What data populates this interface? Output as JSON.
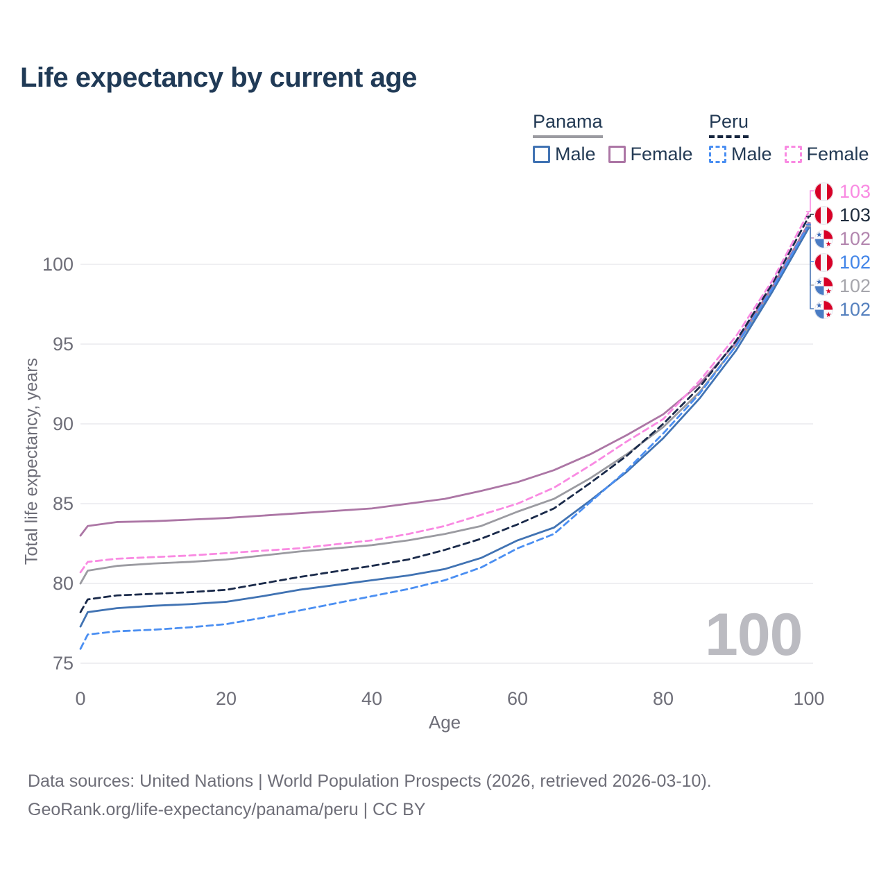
{
  "title": "Life expectancy by current age",
  "legend": {
    "groups": [
      {
        "label": "Panama",
        "line_style": "solid",
        "items": [
          {
            "label": "Male"
          },
          {
            "label": "Female"
          }
        ]
      },
      {
        "label": "Peru",
        "line_style": "dashed",
        "items": [
          {
            "label": "Male"
          },
          {
            "label": "Female"
          }
        ]
      }
    ]
  },
  "colors": {
    "panama_male": "#4173B3",
    "panama_female": "#AC76A5",
    "panama_total": "#9B9BA1",
    "peru_male": "#4B8FF2",
    "peru_female": "#F98AE2",
    "peru_total": "#1A2A4A",
    "panama_underline": "#9B9BA1",
    "peru_underline": "#16263F",
    "title_text": "#203A56",
    "axis_text": "#6E6E78",
    "gridline": "#EAEAEE",
    "watermark_gray": "#BBBBC1",
    "flag_red": "#D80027",
    "flag_blue": "#4A7CC4"
  },
  "chart_data": {
    "type": "line",
    "title": "Life expectancy by current age",
    "xlabel": "Age",
    "ylabel": "Total life expectancy, years",
    "xlim": [
      0,
      100
    ],
    "ylim": [
      75,
      103.5
    ],
    "x_ticks": [
      0,
      20,
      40,
      60,
      80,
      100
    ],
    "y_ticks": [
      75,
      80,
      85,
      90,
      95,
      100
    ],
    "grid": true,
    "legend_position": "top-right",
    "x": [
      0,
      1,
      5,
      10,
      15,
      20,
      25,
      30,
      35,
      40,
      45,
      50,
      55,
      60,
      65,
      70,
      75,
      80,
      85,
      90,
      95,
      100
    ],
    "series": [
      {
        "id": "panama_total",
        "name": "Panama (both sexes)",
        "country": "Panama",
        "dash": "solid",
        "color": "#9B9BA1",
        "values": [
          80.0,
          80.8,
          81.1,
          81.25,
          81.35,
          81.5,
          81.75,
          82.0,
          82.2,
          82.4,
          82.7,
          83.1,
          83.6,
          84.5,
          85.3,
          86.6,
          88.1,
          89.8,
          92.0,
          94.9,
          98.4,
          102.4
        ]
      },
      {
        "id": "panama_female",
        "name": "Panama Female",
        "country": "Panama",
        "dash": "solid",
        "color": "#AC76A5",
        "values": [
          83.0,
          83.6,
          83.85,
          83.9,
          84.0,
          84.1,
          84.25,
          84.4,
          84.55,
          84.7,
          85.0,
          85.3,
          85.8,
          86.35,
          87.1,
          88.1,
          89.3,
          90.6,
          92.5,
          95.1,
          98.6,
          102.6
        ]
      },
      {
        "id": "panama_male",
        "name": "Panama Male",
        "country": "Panama",
        "dash": "solid",
        "color": "#4173B3",
        "values": [
          77.3,
          78.2,
          78.45,
          78.6,
          78.7,
          78.85,
          79.2,
          79.6,
          79.9,
          80.2,
          80.5,
          80.9,
          81.6,
          82.7,
          83.5,
          85.2,
          87.0,
          89.1,
          91.6,
          94.6,
          98.3,
          102.3
        ]
      },
      {
        "id": "peru_total",
        "name": "Peru (both sexes)",
        "country": "Peru",
        "dash": "dashed",
        "color": "#1A2A4A",
        "values": [
          78.2,
          79.0,
          79.25,
          79.35,
          79.45,
          79.6,
          80.0,
          80.4,
          80.75,
          81.1,
          81.5,
          82.1,
          82.8,
          83.7,
          84.7,
          86.3,
          88.0,
          90.0,
          92.3,
          95.2,
          98.8,
          103.0
        ]
      },
      {
        "id": "peru_male",
        "name": "Peru Male",
        "country": "Peru",
        "dash": "dashed",
        "color": "#4B8FF2",
        "values": [
          75.9,
          76.8,
          77.0,
          77.1,
          77.25,
          77.45,
          77.85,
          78.3,
          78.75,
          79.2,
          79.65,
          80.2,
          81.0,
          82.2,
          83.1,
          85.1,
          87.1,
          89.4,
          91.9,
          94.9,
          98.5,
          102.5
        ]
      },
      {
        "id": "peru_female",
        "name": "Peru Female",
        "country": "Peru",
        "dash": "dashed",
        "color": "#F98AE2",
        "values": [
          80.7,
          81.35,
          81.55,
          81.65,
          81.75,
          81.9,
          82.05,
          82.2,
          82.45,
          82.7,
          83.1,
          83.6,
          84.3,
          85.0,
          86.0,
          87.4,
          88.9,
          90.3,
          92.7,
          95.5,
          99.0,
          103.3
        ]
      }
    ]
  },
  "end_labels": [
    {
      "series": "peru_female",
      "flag": "peru",
      "value": "103",
      "color": "#F98AE2"
    },
    {
      "series": "peru_total",
      "flag": "peru",
      "value": "103",
      "color": "#1E2B3C"
    },
    {
      "series": "panama_female",
      "flag": "panama",
      "value": "102",
      "color": "#B285AE"
    },
    {
      "series": "peru_male",
      "flag": "peru",
      "value": "102",
      "color": "#4285E8"
    },
    {
      "series": "panama_total",
      "flag": "panama",
      "value": "102",
      "color": "#A6A6AC"
    },
    {
      "series": "panama_male",
      "flag": "panama",
      "value": "102",
      "color": "#5580BE"
    }
  ],
  "watermark": "100",
  "footer": {
    "line1": "Data sources: United Nations | World Population Prospects (2026, retrieved 2026-03-10).",
    "line2": "GeoRank.org/life-expectancy/panama/peru | CC BY"
  }
}
